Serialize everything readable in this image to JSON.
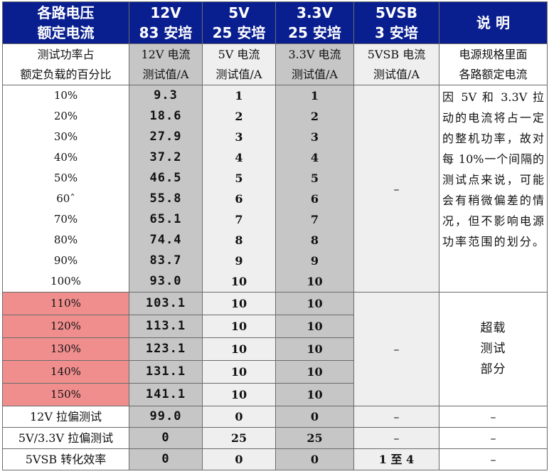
{
  "header": {
    "col0": [
      "各路电压",
      "额定电流"
    ],
    "col1": [
      "12V",
      "83 安培"
    ],
    "col2": [
      "5V",
      "25 安培"
    ],
    "col3": [
      "3.3V",
      "25 安培"
    ],
    "col4": [
      "5VSB",
      "3 安培"
    ],
    "col5": "说 明"
  },
  "subheader": {
    "col0": [
      "测试功率占",
      "额定负载的百分比"
    ],
    "col1": [
      "12V 电流",
      "测试值/A"
    ],
    "col2": [
      "5V 电流",
      "测试值/A"
    ],
    "col3": [
      "3.3V 电流",
      "测试值/A"
    ],
    "col4": [
      "5VSB 电流",
      "测试值/A"
    ],
    "col5": [
      "电源规格里面",
      "各路额定电流"
    ]
  },
  "normal_rows": [
    {
      "pct": "10%",
      "v12": "9.3",
      "v5": "1",
      "v33": "1"
    },
    {
      "pct": "20%",
      "v12": "18.6",
      "v5": "2",
      "v33": "2"
    },
    {
      "pct": "30%",
      "v12": "27.9",
      "v5": "3",
      "v33": "3"
    },
    {
      "pct": "40%",
      "v12": "37.2",
      "v5": "4",
      "v33": "4"
    },
    {
      "pct": "50%",
      "v12": "46.5",
      "v5": "5",
      "v33": "5"
    },
    {
      "pct": "60ˆ",
      "v12": "55.8",
      "v5": "6",
      "v33": "6"
    },
    {
      "pct": "70%",
      "v12": "65.1",
      "v5": "7",
      "v33": "7"
    },
    {
      "pct": "80%",
      "v12": "74.4",
      "v5": "8",
      "v33": "8"
    },
    {
      "pct": "90%",
      "v12": "83.7",
      "v5": "9",
      "v33": "9"
    },
    {
      "pct": "100%",
      "v12": "93.0",
      "v5": "10",
      "v33": "10"
    }
  ],
  "normal_vsb": "–",
  "normal_note": "因 5V 和 3.3V 拉动的电流将占一定的整机功率，故对每 10%一个间隔的测试点来说，可能会有稍微偏差的情况，但不影响电源功率范围的划分。",
  "over_rows": [
    {
      "pct": "110%",
      "v12": "103.1",
      "v5": "10",
      "v33": "10"
    },
    {
      "pct": "120%",
      "v12": "113.1",
      "v5": "10",
      "v33": "10"
    },
    {
      "pct": "130%",
      "v12": "123.1",
      "v5": "10",
      "v33": "10"
    },
    {
      "pct": "140%",
      "v12": "131.1",
      "v5": "10",
      "v33": "10"
    },
    {
      "pct": "150%",
      "v12": "141.1",
      "v5": "10",
      "v33": "10"
    }
  ],
  "over_vsb": "–",
  "over_note": [
    "超载",
    "测试",
    "部分"
  ],
  "extra_rows": [
    {
      "label": "12V 拉偏测试",
      "v12": "99.0",
      "v5": "0",
      "v33": "0",
      "vsb": "–",
      "note": "–"
    },
    {
      "label": "5V/3.3V 拉偏测试",
      "v12": "0",
      "v5": "25",
      "v33": "25",
      "vsb": "–",
      "note": "–"
    },
    {
      "label": "5VSB 转化效率",
      "v12": "0",
      "v5": "0",
      "v33": "0",
      "vsb": "1 至 4",
      "note": "–"
    }
  ],
  "colors": {
    "header_bg": "#0a1f8f",
    "dark_gray": "#c6c6c6",
    "light_gray": "#efefef",
    "overload_pink": "#f08e8e"
  }
}
